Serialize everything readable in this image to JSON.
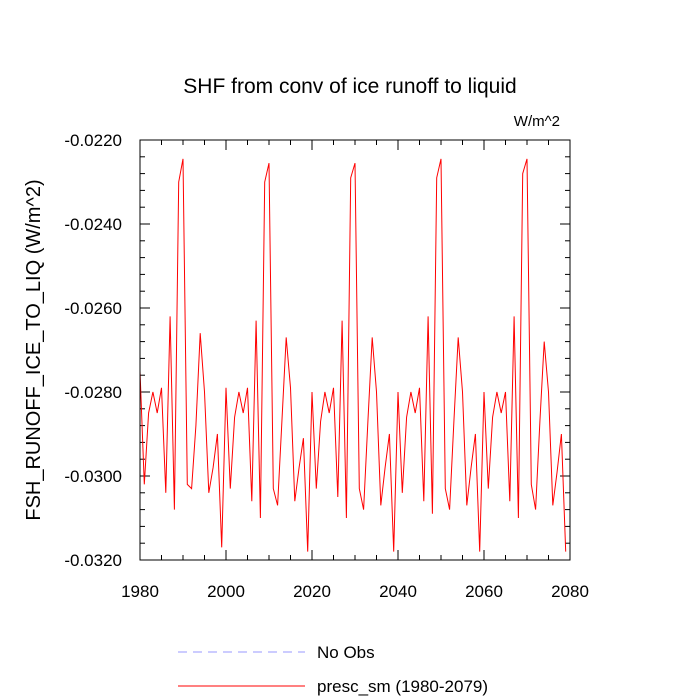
{
  "chart_data": {
    "type": "line",
    "title": "SHF from conv of ice runoff to liquid",
    "units_label": "W/m^2",
    "xlabel": "",
    "ylabel": "FSH_RUNOFF_ICE_TO_LIQ  (W/m^2)",
    "xlim": [
      1980,
      2080
    ],
    "ylim": [
      -0.032,
      -0.022
    ],
    "xticks": [
      1980,
      2000,
      2020,
      2040,
      2060,
      2080
    ],
    "xtick_labels": [
      "1980",
      "2000",
      "2020",
      "2040",
      "2060",
      "2080"
    ],
    "yticks": [
      -0.032,
      -0.03,
      -0.028,
      -0.026,
      -0.024,
      -0.022
    ],
    "ytick_labels": [
      "-0.0320",
      "-0.0300",
      "-0.0280",
      "-0.0260",
      "-0.0240",
      "-0.0220"
    ],
    "legend_position": "bottom",
    "series": [
      {
        "name": "No Obs",
        "color": "#9999ff",
        "dashed": true,
        "x": [],
        "values": []
      },
      {
        "name": "presc_sm (1980-2079)",
        "color": "#ff0000",
        "dashed": false,
        "x": [
          1980,
          1981,
          1982,
          1983,
          1984,
          1985,
          1986,
          1987,
          1988,
          1989,
          1990,
          1991,
          1992,
          1993,
          1994,
          1995,
          1996,
          1997,
          1998,
          1999,
          2000,
          2001,
          2002,
          2003,
          2004,
          2005,
          2006,
          2007,
          2008,
          2009,
          2010,
          2011,
          2012,
          2013,
          2014,
          2015,
          2016,
          2017,
          2018,
          2019,
          2020,
          2021,
          2022,
          2023,
          2024,
          2025,
          2026,
          2027,
          2028,
          2029,
          2030,
          2031,
          2032,
          2033,
          2034,
          2035,
          2036,
          2037,
          2038,
          2039,
          2040,
          2041,
          2042,
          2043,
          2044,
          2045,
          2046,
          2047,
          2048,
          2049,
          2050,
          2051,
          2052,
          2053,
          2054,
          2055,
          2056,
          2057,
          2058,
          2059,
          2060,
          2061,
          2062,
          2063,
          2064,
          2065,
          2066,
          2067,
          2068,
          2069,
          2070,
          2071,
          2072,
          2073,
          2074,
          2075,
          2076,
          2077,
          2078,
          2079
        ],
        "values": [
          -0.0275,
          -0.0302,
          -0.0285,
          -0.028,
          -0.0285,
          -0.0279,
          -0.0304,
          -0.0262,
          -0.0308,
          -0.023,
          -0.02245,
          -0.0302,
          -0.0303,
          -0.0288,
          -0.0266,
          -0.028,
          -0.0304,
          -0.0298,
          -0.029,
          -0.0317,
          -0.0279,
          -0.0303,
          -0.0286,
          -0.028,
          -0.0285,
          -0.0279,
          -0.0306,
          -0.0263,
          -0.031,
          -0.023,
          -0.02255,
          -0.0303,
          -0.0307,
          -0.0287,
          -0.0267,
          -0.0279,
          -0.0306,
          -0.0298,
          -0.0291,
          -0.0318,
          -0.028,
          -0.0303,
          -0.0287,
          -0.028,
          -0.0285,
          -0.0279,
          -0.0305,
          -0.0263,
          -0.031,
          -0.0229,
          -0.02255,
          -0.0303,
          -0.0308,
          -0.0287,
          -0.0267,
          -0.028,
          -0.0307,
          -0.0298,
          -0.029,
          -0.0318,
          -0.028,
          -0.0304,
          -0.0286,
          -0.028,
          -0.0285,
          -0.0279,
          -0.0306,
          -0.0262,
          -0.0309,
          -0.0229,
          -0.02245,
          -0.0303,
          -0.0308,
          -0.0287,
          -0.0267,
          -0.028,
          -0.0307,
          -0.0298,
          -0.029,
          -0.0318,
          -0.028,
          -0.0303,
          -0.0286,
          -0.028,
          -0.0285,
          -0.028,
          -0.0306,
          -0.0262,
          -0.031,
          -0.0228,
          -0.02245,
          -0.0302,
          -0.0308,
          -0.0287,
          -0.0268,
          -0.028,
          -0.0307,
          -0.0299,
          -0.029,
          -0.0318
        ]
      }
    ]
  }
}
